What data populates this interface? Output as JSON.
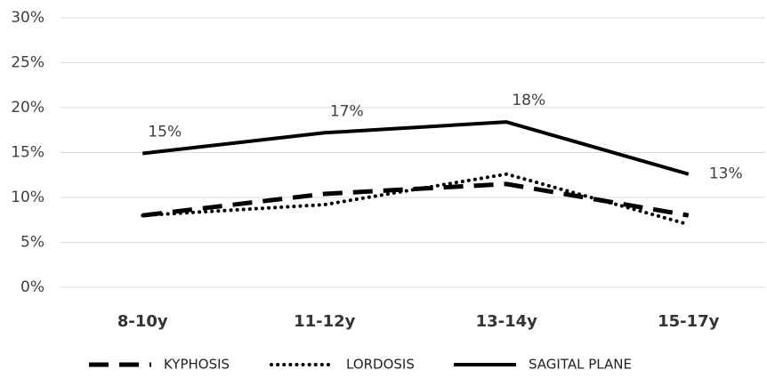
{
  "chart_data": {
    "type": "line",
    "categories": [
      "8-10y",
      "11-12y",
      "13-14y",
      "15-17y"
    ],
    "series": [
      {
        "name": "KYPHOSIS",
        "color": "#000000",
        "dash": "dashed",
        "values": [
          8.0,
          10.4,
          11.5,
          8.0
        ]
      },
      {
        "name": "LORDOSIS",
        "color": "#000000",
        "dash": "dotted",
        "values": [
          8.0,
          9.2,
          12.6,
          7.0
        ]
      },
      {
        "name": "SAGITAL PLANE",
        "color": "#000000",
        "dash": "solid",
        "values": [
          14.9,
          17.2,
          18.4,
          12.6
        ],
        "value_labels": [
          "15%",
          "17%",
          "18%",
          "13%"
        ]
      }
    ],
    "ylim": [
      0,
      30
    ],
    "yticks": [
      {
        "value": 0,
        "label": "0%"
      },
      {
        "value": 5,
        "label": "5%"
      },
      {
        "value": 10,
        "label": "10%"
      },
      {
        "value": 15,
        "label": "15%"
      },
      {
        "value": 20,
        "label": "20%"
      },
      {
        "value": 25,
        "label": "25%"
      },
      {
        "value": 30,
        "label": "30%"
      }
    ],
    "grid": true,
    "legend": "bottom"
  }
}
